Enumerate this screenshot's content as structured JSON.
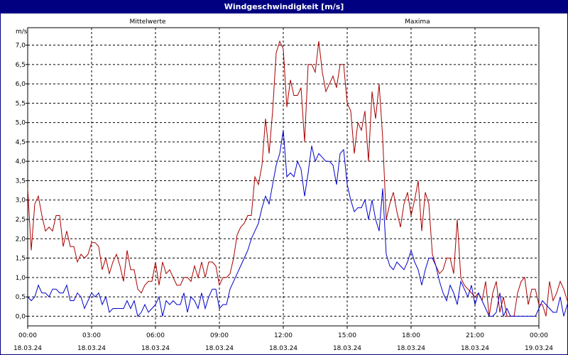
{
  "window": {
    "title": "Windgeschwindigkeit [m/s]"
  },
  "chart_data": {
    "type": "line",
    "title": "Windgeschwindigkeit [m/s]",
    "ylabel": "m/s",
    "xlabel": "",
    "ylim": [
      -0.25,
      7.45
    ],
    "xlim": [
      0,
      24
    ],
    "grid": true,
    "y_ticks": [
      "0,0",
      "0,5",
      "1,0",
      "1,5",
      "2,0",
      "2,5",
      "3,0",
      "3,5",
      "4,0",
      "4,5",
      "5,0",
      "5,5",
      "6,0",
      "6,5",
      "7,0"
    ],
    "y_tick_values": [
      0,
      0.5,
      1,
      1.5,
      2,
      2.5,
      3,
      3.5,
      4,
      4.5,
      5,
      5.5,
      6,
      6.5,
      7
    ],
    "x_ticks": [
      {
        "time": "00:00",
        "date": "18.03.24"
      },
      {
        "time": "03:00",
        "date": "18.03.24"
      },
      {
        "time": "06:00",
        "date": "18.03.24"
      },
      {
        "time": "09:00",
        "date": "18.03.24"
      },
      {
        "time": "12:00",
        "date": "18.03.24"
      },
      {
        "time": "15:00",
        "date": "18.03.24"
      },
      {
        "time": "18:00",
        "date": "18.03.24"
      },
      {
        "time": "21:00",
        "date": "18.03.24"
      },
      {
        "time": "00:00",
        "date": "19.03.24"
      }
    ],
    "x_tick_hours": [
      0,
      3,
      6,
      9,
      12,
      15,
      18,
      21,
      24
    ],
    "step_minutes": 10,
    "series": [
      {
        "name": "Mittelwerte",
        "color": "#0000cc",
        "values": [
          0.5,
          0.4,
          0.5,
          0.8,
          0.6,
          0.6,
          0.5,
          0.7,
          0.7,
          0.6,
          0.6,
          0.8,
          0.4,
          0.4,
          0.6,
          0.5,
          0.2,
          0.4,
          0.6,
          0.5,
          0.6,
          0.3,
          0.5,
          0.1,
          0.2,
          0.2,
          0.2,
          0.2,
          0.4,
          0.2,
          0.4,
          0.0,
          0.1,
          0.3,
          0.1,
          0.2,
          0.3,
          0.5,
          0.0,
          0.4,
          0.3,
          0.4,
          0.3,
          0.3,
          0.6,
          0.1,
          0.5,
          0.4,
          0.2,
          0.6,
          0.2,
          0.5,
          0.7,
          0.7,
          0.2,
          0.3,
          0.3,
          0.7,
          0.9,
          1.1,
          1.3,
          1.5,
          1.7,
          2.0,
          2.2,
          2.4,
          2.8,
          3.1,
          2.9,
          3.4,
          3.9,
          4.2,
          4.8,
          3.6,
          3.7,
          3.6,
          4.0,
          3.8,
          3.1,
          3.7,
          4.4,
          4.0,
          4.2,
          4.1,
          4.0,
          4.0,
          3.9,
          3.4,
          4.2,
          4.3,
          3.4,
          3.0,
          2.7,
          2.8,
          2.8,
          3.0,
          2.5,
          3.0,
          2.5,
          2.2,
          3.3,
          1.6,
          1.3,
          1.2,
          1.4,
          1.3,
          1.2,
          1.4,
          1.7,
          1.4,
          1.2,
          0.8,
          1.2,
          1.5,
          1.5,
          1.3,
          0.9,
          0.6,
          0.4,
          0.8,
          0.6,
          0.3,
          0.9,
          0.7,
          0.5,
          0.8,
          0.3,
          0.6,
          0.4,
          0.2,
          0.0,
          0.0,
          0.1,
          0.6,
          0.0,
          0.2,
          0.0,
          0.0,
          0.0,
          0.0,
          0.0,
          0.0,
          0.0,
          0.0,
          0.2,
          0.4,
          0.3,
          0.2,
          0.1,
          0.1,
          0.5,
          0.0,
          0.3,
          0.2,
          0.0,
          0.2,
          0.1,
          0.5,
          0.8,
          0.8,
          0.4,
          0.0
        ]
      },
      {
        "name": "Maxima",
        "color": "#aa0000",
        "values": [
          3.3,
          1.7,
          2.9,
          3.1,
          2.6,
          2.2,
          2.3,
          2.2,
          2.6,
          2.6,
          1.8,
          2.2,
          1.8,
          1.8,
          1.4,
          1.6,
          1.5,
          1.6,
          1.9,
          1.9,
          1.8,
          1.2,
          1.5,
          1.1,
          1.4,
          1.6,
          1.3,
          0.9,
          1.7,
          1.2,
          1.2,
          0.7,
          0.6,
          0.8,
          0.9,
          0.9,
          1.4,
          0.8,
          1.4,
          1.1,
          1.2,
          1.0,
          0.8,
          0.8,
          1.0,
          1.0,
          0.9,
          1.3,
          1.0,
          1.4,
          1.0,
          1.4,
          1.4,
          1.3,
          0.8,
          1.0,
          1.0,
          1.1,
          1.5,
          2.1,
          2.3,
          2.4,
          2.6,
          2.6,
          3.6,
          3.4,
          3.9,
          5.1,
          4.2,
          5.3,
          6.8,
          7.1,
          6.9,
          5.4,
          6.1,
          5.7,
          5.7,
          5.9,
          4.5,
          6.5,
          6.5,
          6.3,
          7.1,
          6.3,
          5.8,
          6.0,
          6.2,
          5.9,
          6.5,
          6.5,
          5.5,
          5.3,
          4.2,
          5.0,
          4.8,
          5.3,
          4.0,
          5.8,
          5.1,
          6.0,
          4.6,
          2.5,
          2.9,
          3.2,
          2.7,
          2.3,
          2.9,
          3.2,
          2.6,
          3.0,
          3.5,
          2.2,
          3.2,
          2.9,
          1.6,
          1.3,
          1.1,
          1.2,
          1.5,
          1.5,
          1.1,
          2.5,
          1.0,
          0.8,
          0.7,
          0.6,
          0.5,
          0.6,
          0.4,
          0.9,
          0.0,
          0.6,
          0.9,
          0.1,
          0.5,
          0.0,
          0.0,
          0.0,
          0.6,
          0.9,
          1.0,
          0.3,
          0.7,
          0.7,
          0.3,
          0.3,
          0.0,
          0.9,
          0.4,
          0.6,
          0.9,
          0.7,
          0.4,
          0.8,
          1.0,
          1.1,
          0.7,
          0.0
        ]
      }
    ]
  }
}
